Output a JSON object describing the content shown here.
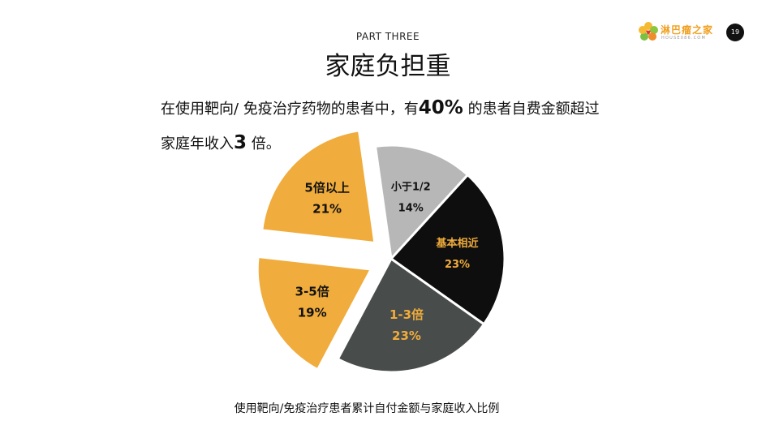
{
  "header": {
    "part_label": "PART THREE",
    "title": "家庭负担重",
    "page_number": "19"
  },
  "logo": {
    "name": "淋巴瘤之家",
    "sub": "HOUSE086.COM",
    "icon": "flower-logo-icon"
  },
  "lead": {
    "line1_before": "在使用靶向/ 免疫治疗药物的患者中，有",
    "line1_highlight": "40%",
    "line1_after": " 的患者自费金额超过",
    "line2_before": "家庭年收入",
    "line2_highlight": "3",
    "line2_after": " 倍。"
  },
  "caption": "使用靶向/免疫治疗患者累计自付金额与家庭收入比例",
  "colors": {
    "orange": "#f0ac3c",
    "gray": "#b7b7b7",
    "black": "#0e0e0e",
    "darkgray": "#484c4b"
  },
  "chart_data": {
    "type": "pie",
    "title": "",
    "slices": [
      {
        "label": "小于1/2",
        "value": 14,
        "percent": "14%",
        "color": "#b7b7b7",
        "text_color": "#111111",
        "exploded": false
      },
      {
        "label": "基本相近",
        "value": 23,
        "percent": "23%",
        "color": "#0e0e0e",
        "text_color": "#f0ac3c",
        "exploded": false
      },
      {
        "label": "1-3倍",
        "value": 23,
        "percent": "23%",
        "color": "#484c4b",
        "text_color": "#f0ac3c",
        "exploded": false
      },
      {
        "label": "3-5倍",
        "value": 19,
        "percent": "19%",
        "color": "#f0ac3c",
        "text_color": "#111111",
        "exploded": true
      },
      {
        "label": "5倍以上",
        "value": 21,
        "percent": "21%",
        "color": "#f0ac3c",
        "text_color": "#111111",
        "exploded": true
      }
    ]
  }
}
